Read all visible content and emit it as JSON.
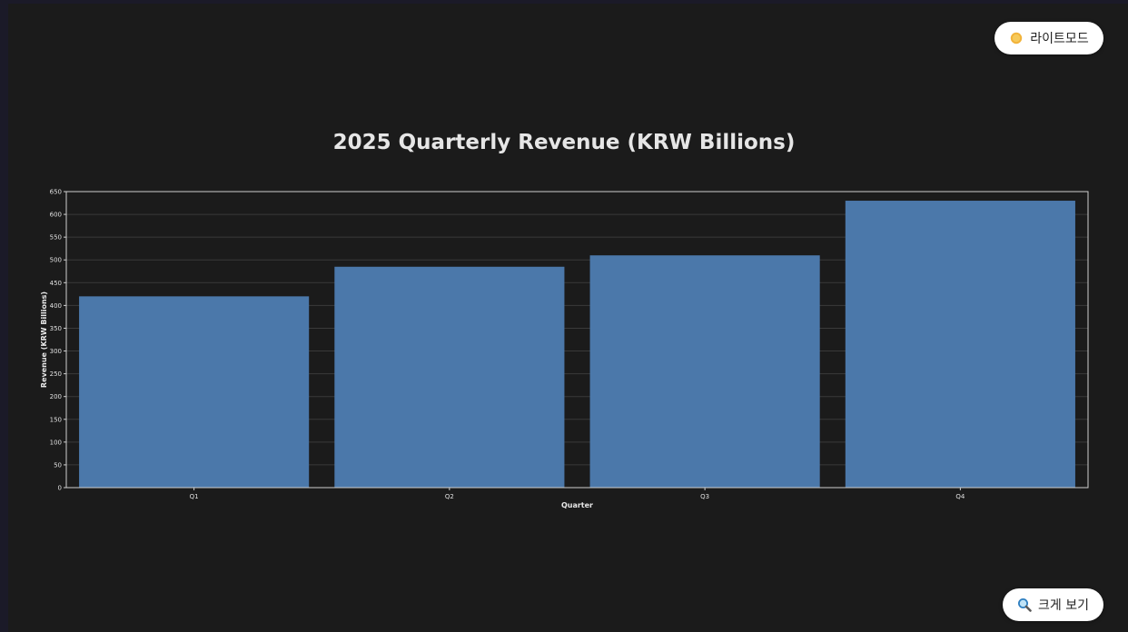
{
  "toolbar": {
    "light_mode_label": "라이트모드",
    "light_mode_icon": "sun-icon",
    "zoom_label": "크게 보기",
    "zoom_icon": "magnifier-icon"
  },
  "chart_data": {
    "type": "bar",
    "title": "2025 Quarterly Revenue (KRW Billions)",
    "xlabel": "Quarter",
    "ylabel": "Revenue (KRW Billions)",
    "categories": [
      "Q1",
      "Q2",
      "Q3",
      "Q4"
    ],
    "values": [
      420,
      485,
      510,
      630
    ],
    "ylim": [
      0,
      650
    ],
    "yticks": [
      0,
      50,
      100,
      150,
      200,
      250,
      300,
      350,
      400,
      450,
      500,
      550,
      600,
      650
    ],
    "grid": true,
    "bar_color": "#4b78aa",
    "background": "#1b1b1b"
  }
}
